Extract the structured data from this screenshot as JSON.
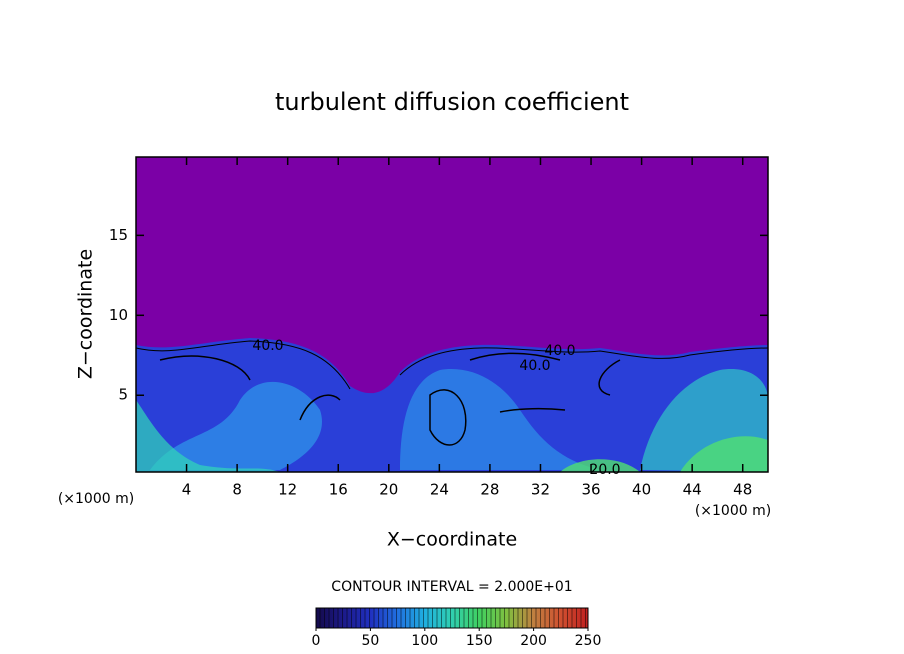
{
  "chart_data": {
    "type": "contour",
    "title": "turbulent diffusion coefficient",
    "x_label": "X−coordinate",
    "y_label": "Z−coordinate",
    "x_unit_labels": [
      "(×1000 m)",
      "(×1000 m)"
    ],
    "xlim": [
      0,
      50
    ],
    "xticks": [
      4,
      8,
      12,
      16,
      20,
      24,
      28,
      32,
      36,
      40,
      44,
      48
    ],
    "ylim": [
      0.2,
      19.9
    ],
    "yticks": [
      5,
      10,
      15
    ],
    "background_color": "#7b00a6",
    "contour_labels": [
      "40.0",
      "40.0",
      "40.0",
      "20.0"
    ],
    "contour_interval_label": "CONTOUR INTERVAL = 2.000E+01",
    "colorbar": {
      "lim": [
        0,
        250
      ],
      "ticks": [
        0,
        50,
        100,
        150,
        200,
        250
      ],
      "colors": [
        "#140a4a",
        "#1c1a8a",
        "#2030c0",
        "#2070e0",
        "#20b0e0",
        "#30d0b0",
        "#40d060",
        "#80c040",
        "#c08040",
        "#d05030",
        "#c02020"
      ]
    }
  }
}
